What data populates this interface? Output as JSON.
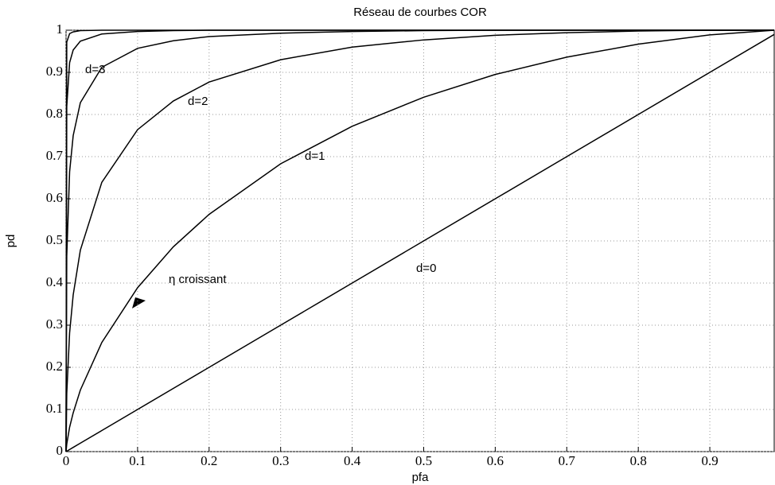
{
  "chart_data": {
    "type": "line",
    "title": "Réseau de courbes COR",
    "xlabel": "pfa",
    "ylabel": "pd",
    "x": [
      0,
      0.001,
      0.005,
      0.01,
      0.02,
      0.05,
      0.1,
      0.15,
      0.2,
      0.3,
      0.4,
      0.5,
      0.6,
      0.7,
      0.8,
      0.9,
      0.99
    ],
    "series": [
      {
        "name": "d=0",
        "color": "#000000",
        "values": [
          0,
          0.001,
          0.005,
          0.01,
          0.02,
          0.05,
          0.1,
          0.15,
          0.2,
          0.3,
          0.4,
          0.5,
          0.6,
          0.7,
          0.8,
          0.9,
          0.99
        ]
      },
      {
        "name": "d=1",
        "color": "#000000",
        "values": [
          0,
          0.018,
          0.058,
          0.092,
          0.146,
          0.259,
          0.389,
          0.486,
          0.563,
          0.683,
          0.772,
          0.841,
          0.895,
          0.936,
          0.967,
          0.989,
          1.0
        ]
      },
      {
        "name": "d=2",
        "color": "#000000",
        "values": [
          0,
          0.138,
          0.282,
          0.372,
          0.478,
          0.639,
          0.764,
          0.832,
          0.877,
          0.93,
          0.96,
          0.977,
          0.988,
          0.994,
          0.998,
          1.0,
          1.0
        ]
      },
      {
        "name": "d=3",
        "color": "#000000",
        "values": [
          0,
          0.464,
          0.664,
          0.75,
          0.828,
          0.912,
          0.957,
          0.975,
          0.985,
          0.993,
          0.997,
          0.999,
          1.0,
          1.0,
          1.0,
          1.0,
          1.0
        ]
      },
      {
        "color": "#000000",
        "values": [
          0,
          0.819,
          0.923,
          0.953,
          0.974,
          0.991,
          0.997,
          0.999,
          1.0,
          1.0,
          1.0,
          1.0,
          1.0,
          1.0,
          1.0,
          1.0,
          1.0
        ]
      },
      {
        "color": "#000000",
        "values": [
          0,
          0.972,
          0.992,
          0.996,
          0.999,
          1.0,
          1.0,
          1.0,
          1.0,
          1.0,
          1.0,
          1.0,
          1.0,
          1.0,
          1.0,
          1.0,
          1.0
        ]
      }
    ],
    "annotations": [
      "η croissant"
    ],
    "xlim": [
      0,
      0.99
    ],
    "ylim": [
      0,
      1
    ],
    "xticks": [
      0,
      0.1,
      0.2,
      0.3,
      0.4,
      0.5,
      0.6,
      0.7,
      0.8,
      0.9
    ],
    "yticks": [
      0,
      0.1,
      0.2,
      0.3,
      0.4,
      0.5,
      0.6,
      0.7,
      0.8,
      0.9,
      1
    ],
    "grid": true
  }
}
